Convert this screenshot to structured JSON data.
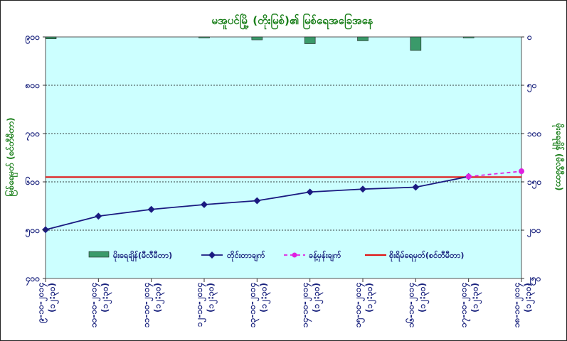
{
  "chart_data": {
    "type": "bar",
    "title": "မအူပင်မြို့ (တိုးမြစ်)၏ မြစ်ရေအခြေအနေ",
    "ylabel_left": "မြစ်ရေမှတ် (စင်တီမီတာ)",
    "ylabel_right": "မိုးရေချိန် (မီလီမီတာ)",
    "categories": [
      "၉-၁၀-၂၀၁၄ (၁၂:၃၀)",
      "၁၀-၁၀-၂၀၁၄ (၁၂:၃၀)",
      "၁၁-၁၀-၂၀၁၄ (၁၂:၃၀)",
      "၁၂-၁၀-၂၀၁၄ (၁၂:၃၀)",
      "၁၃-၁၀-၂၀၁၄ (၁၂:၃၀)",
      "၁၄-၁၀-၂၀၁၄ (၁၂:၃၀)",
      "၁၅-၁၀-၂၀၁၄ (၁၂:၃၀)",
      "၁၆-၁၀-၂၀၁၄ (၁၂:၃၀)",
      "၁၇-၁၀-၂၀၁၄ (၁၂:၃၀)",
      "၁၈-၁၀-၂၀၁၄ (၁၂:၃၀)"
    ],
    "left_axis": {
      "ticks": [
        900,
        800,
        700,
        600,
        500,
        400
      ],
      "tick_labels": [
        "၉၀၀",
        "၈၀၀",
        "၇၀၀",
        "၆၀၀",
        "၅၀၀",
        "၄၀၀"
      ],
      "range": [
        400,
        900
      ]
    },
    "right_axis": {
      "ticks": [
        0,
        50,
        100,
        150,
        200,
        250
      ],
      "tick_labels": [
        "၀",
        "၅၀",
        "၁၀၀",
        "၁၅၀",
        "၂၀၀",
        "၂၅၀"
      ],
      "range": [
        0,
        250
      ],
      "inverted": true
    },
    "grid": true,
    "legend_placement": "bottom",
    "series": [
      {
        "name": "မိုးရေချိန်(မီလီမီတာ)",
        "kind": "bar",
        "axis": "right",
        "color": "#3a9a6a",
        "values": [
          2,
          0,
          0,
          1,
          3,
          7,
          4,
          14,
          1,
          0
        ]
      },
      {
        "name": "တိုင်းတာချက်",
        "kind": "line",
        "axis": "left",
        "color": "#1a1a80",
        "values": [
          501,
          529,
          543,
          553,
          561,
          579,
          585,
          589,
          611,
          null
        ]
      },
      {
        "name": "ခန့်မှန်းချက်",
        "kind": "line",
        "dashed": true,
        "axis": "left",
        "color": "#e020e0",
        "values": [
          null,
          null,
          null,
          null,
          null,
          null,
          null,
          null,
          611,
          622
        ]
      },
      {
        "name": "စိုးရိမ်ရေမှတ်(စင်တီမီတာ)",
        "kind": "reference",
        "axis": "left",
        "color": "#e01010",
        "value": 610
      }
    ]
  }
}
